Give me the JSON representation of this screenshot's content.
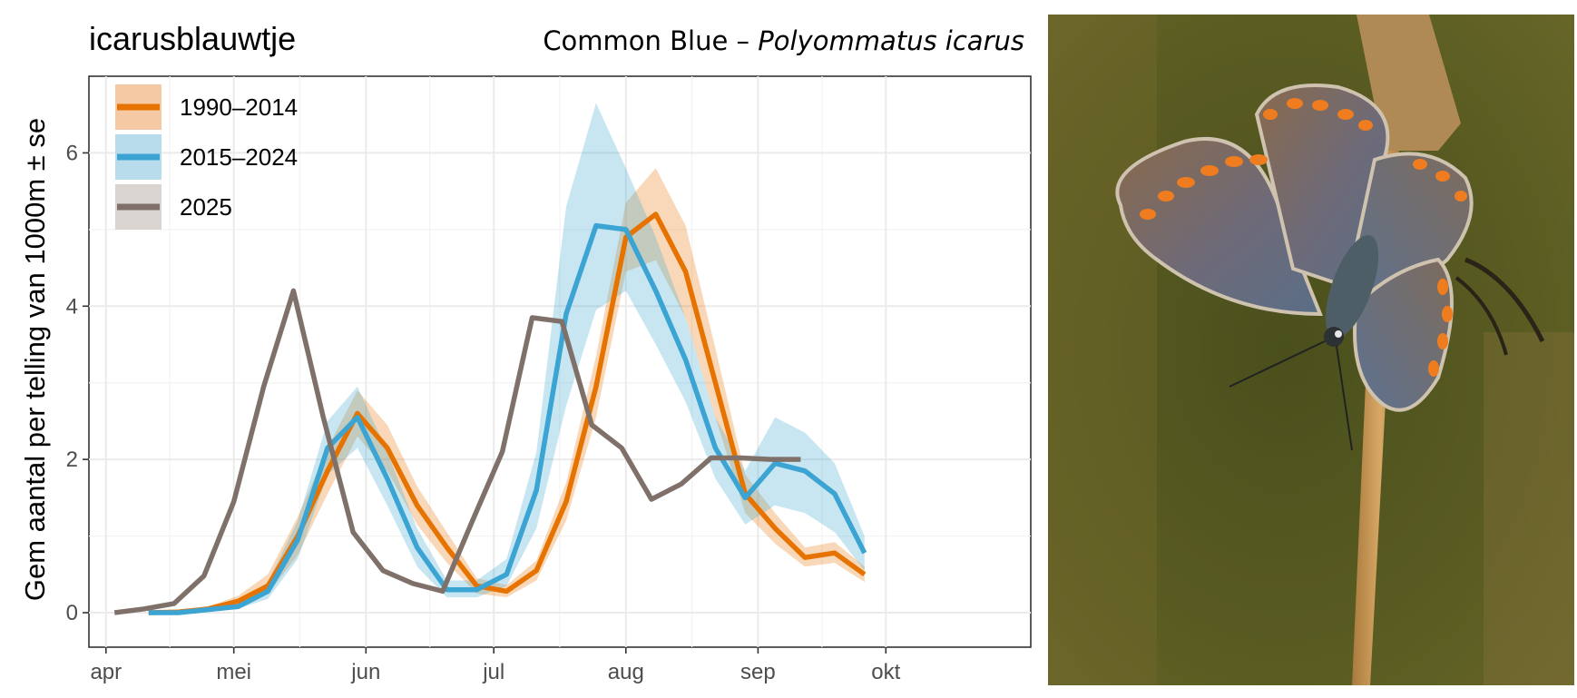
{
  "title": "icarusblauwtje",
  "subtitle": {
    "common": "Common Blue – ",
    "latin": "Polyommatus icarus"
  },
  "photo": {
    "subject": "butterfly-photo"
  },
  "chart_data": {
    "type": "line",
    "xlabel": "",
    "ylabel": "Gem aantal per telling van 1000m ± se",
    "x_unit": "day of year",
    "xlim": [
      87,
      308
    ],
    "ylim": [
      -0.45,
      7.0
    ],
    "grid": true,
    "legend_position": "top-left",
    "x_ticks": [
      {
        "label": "apr",
        "value": 91
      },
      {
        "label": "mei",
        "value": 121
      },
      {
        "label": "jun",
        "value": 152
      },
      {
        "label": "jul",
        "value": 182
      },
      {
        "label": "aug",
        "value": 213
      },
      {
        "label": "sep",
        "value": 244
      },
      {
        "label": "okt",
        "value": 274
      }
    ],
    "y_ticks": [
      0,
      2,
      4,
      6
    ],
    "series": [
      {
        "name": "1990–2014",
        "color": "#e67300",
        "band_color": "#f5c9a3",
        "x": [
          101,
          108,
          115,
          122,
          129,
          136,
          143,
          150,
          157,
          164,
          171,
          178,
          185,
          192,
          199,
          206,
          213,
          220,
          227,
          234,
          241,
          248,
          255,
          262,
          269
        ],
        "values": [
          0.0,
          0.01,
          0.05,
          0.15,
          0.35,
          1.0,
          1.85,
          2.6,
          2.15,
          1.4,
          0.85,
          0.35,
          0.28,
          0.55,
          1.45,
          2.95,
          4.9,
          5.2,
          4.45,
          3.0,
          1.55,
          1.1,
          0.72,
          0.78,
          0.5
        ],
        "lower": [
          0.0,
          0.0,
          0.03,
          0.1,
          0.25,
          0.75,
          1.55,
          2.3,
          1.85,
          1.15,
          0.65,
          0.25,
          0.2,
          0.42,
          1.2,
          2.55,
          4.45,
          4.6,
          3.85,
          2.55,
          1.3,
          0.9,
          0.6,
          0.65,
          0.4
        ],
        "upper": [
          0.01,
          0.02,
          0.08,
          0.22,
          0.5,
          1.25,
          2.15,
          2.9,
          2.45,
          1.65,
          1.05,
          0.45,
          0.36,
          0.68,
          1.7,
          3.35,
          5.35,
          5.8,
          5.05,
          3.45,
          1.8,
          1.3,
          0.85,
          0.92,
          0.6
        ]
      },
      {
        "name": "2015–2024",
        "color": "#3ba4d2",
        "band_color": "#b8dcec",
        "x": [
          101,
          108,
          115,
          122,
          129,
          136,
          143,
          150,
          157,
          164,
          171,
          178,
          185,
          192,
          199,
          206,
          213,
          220,
          227,
          234,
          241,
          248,
          255,
          262,
          269
        ],
        "values": [
          0.0,
          0.0,
          0.04,
          0.08,
          0.28,
          0.95,
          2.15,
          2.55,
          1.75,
          0.85,
          0.3,
          0.3,
          0.5,
          1.6,
          3.9,
          5.05,
          5.0,
          4.2,
          3.3,
          2.15,
          1.5,
          1.95,
          1.85,
          1.55,
          0.78
        ],
        "lower": [
          0.0,
          0.0,
          0.02,
          0.05,
          0.18,
          0.7,
          1.8,
          2.15,
          1.4,
          0.6,
          0.2,
          0.2,
          0.35,
          1.1,
          2.7,
          3.95,
          4.2,
          3.5,
          2.75,
          1.75,
          1.15,
          1.4,
          1.3,
          1.05,
          0.55
        ],
        "upper": [
          0.01,
          0.01,
          0.06,
          0.12,
          0.4,
          1.2,
          2.5,
          2.95,
          2.1,
          1.1,
          0.42,
          0.42,
          0.7,
          2.1,
          5.3,
          6.65,
          5.8,
          4.9,
          3.85,
          2.55,
          1.85,
          2.55,
          2.35,
          1.95,
          1.0
        ]
      },
      {
        "name": "2025",
        "color": "#7f716a",
        "band_color": "#d9d4d0",
        "x": [
          93,
          100,
          107,
          114,
          121,
          128,
          135,
          142,
          149,
          156,
          163,
          170,
          177,
          184,
          191,
          198,
          205,
          212,
          219,
          226,
          233,
          240,
          247,
          254
        ],
        "values": [
          0.0,
          0.05,
          0.12,
          0.48,
          1.45,
          2.95,
          4.2,
          2.55,
          1.05,
          0.55,
          0.38,
          0.28,
          1.2,
          2.1,
          3.85,
          3.8,
          2.45,
          2.15,
          1.48,
          1.68,
          2.02,
          2.02,
          2.0,
          2.0
        ]
      }
    ]
  }
}
